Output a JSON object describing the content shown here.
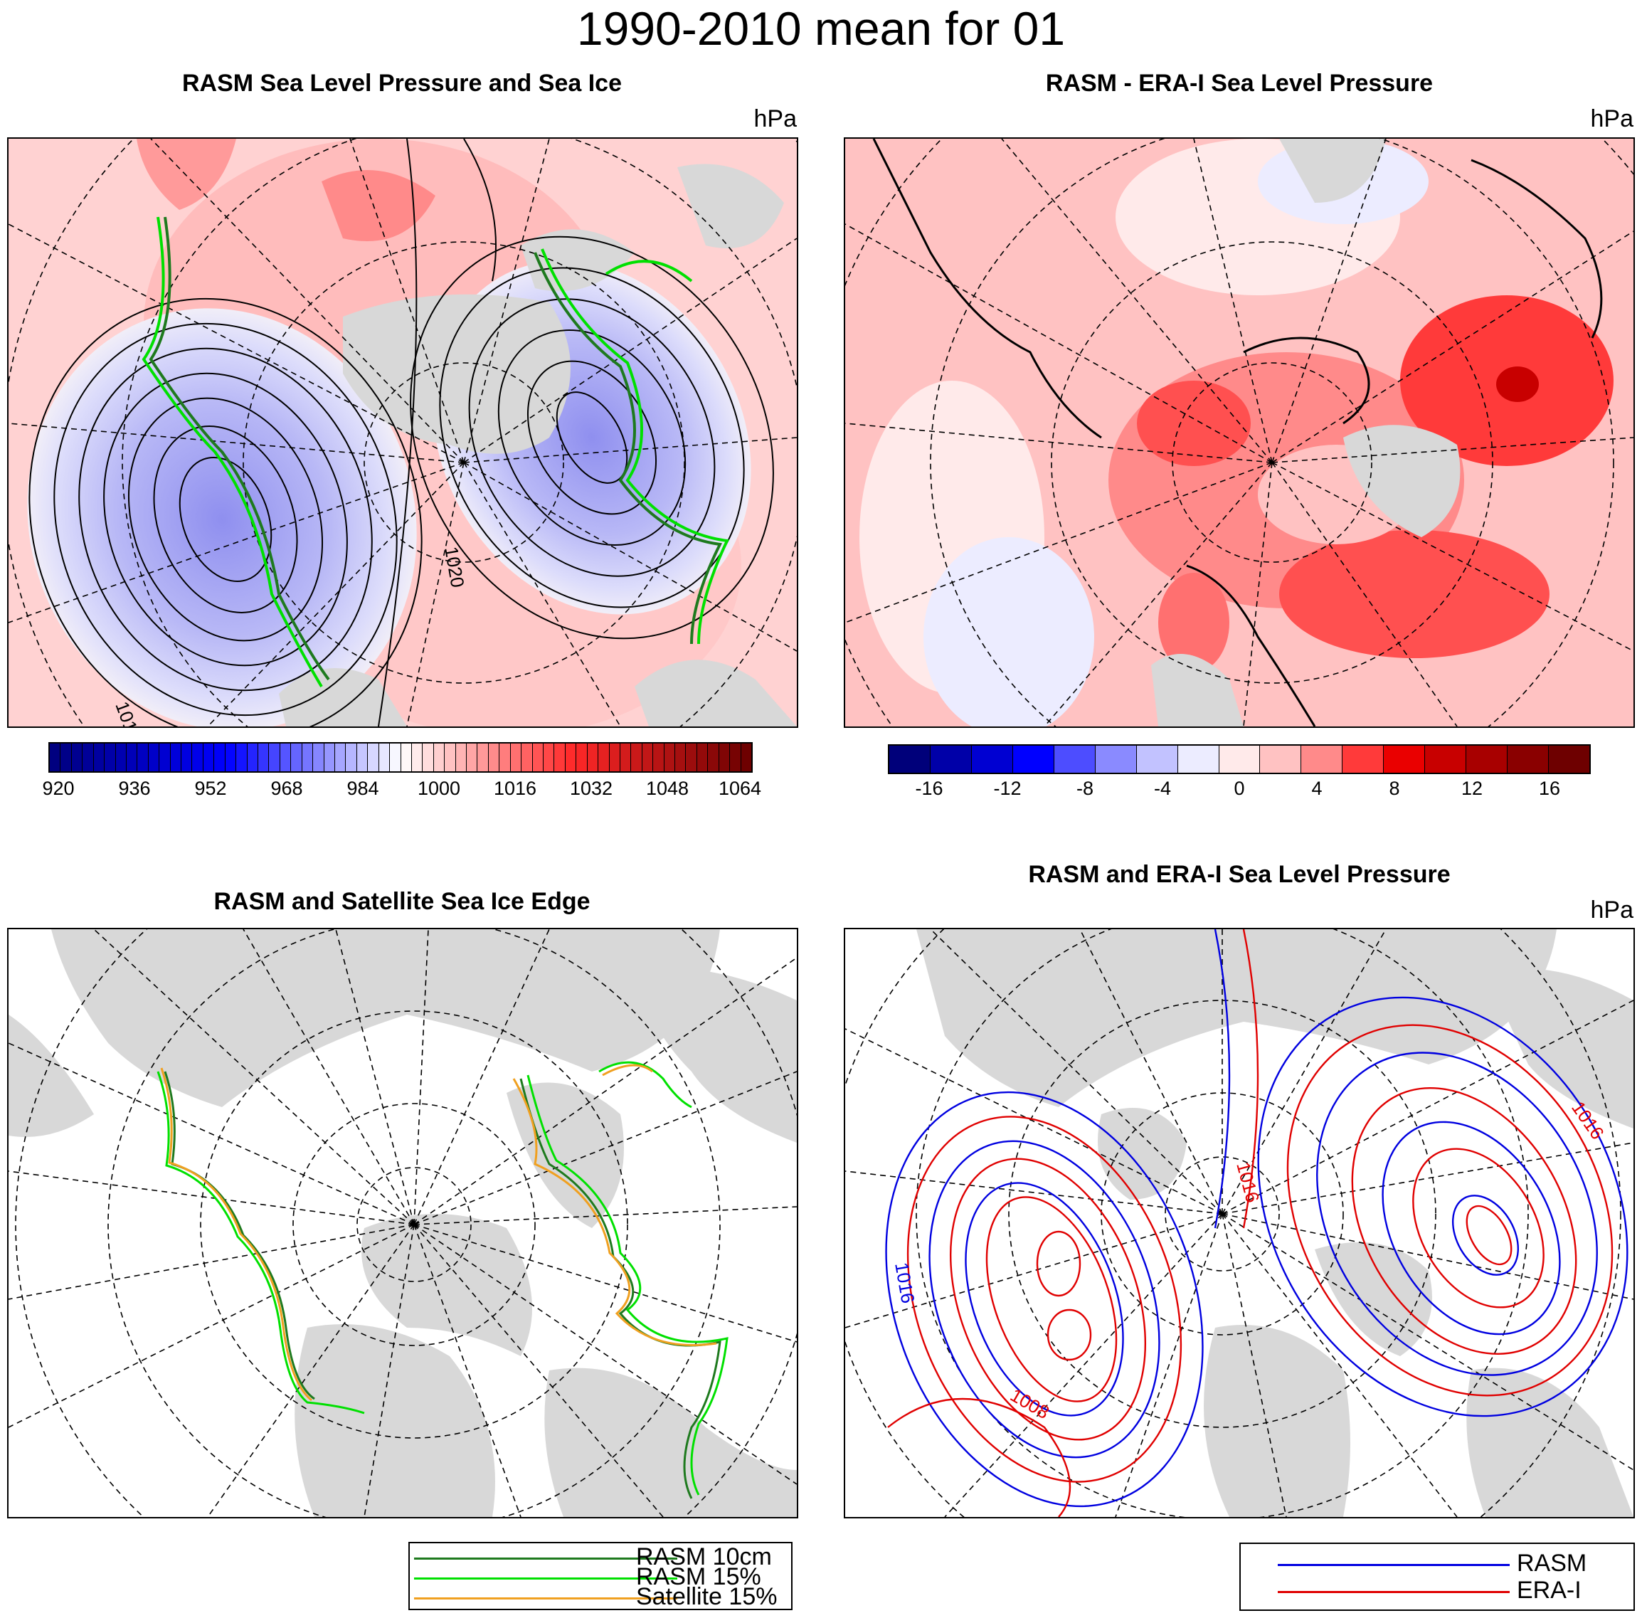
{
  "title": "1990-2010 mean for 01",
  "panels": {
    "top_left": {
      "title": "RASM Sea Level Pressure and Sea Ice",
      "units": "hPa",
      "contour_labels": [
        "1012",
        "1016",
        "1020"
      ]
    },
    "top_right": {
      "title": "RASM - ERA-I Sea Level Pressure",
      "units": "hPa"
    },
    "bottom_left": {
      "title": "RASM and Satellite Sea Ice Edge"
    },
    "bottom_right": {
      "title": "RASM and ERA-I Sea Level Pressure",
      "units": "hPa",
      "contour_labels": [
        "1016",
        "1008",
        "1016",
        "1016"
      ]
    }
  },
  "colorbar_slp": {
    "ticks": [
      "920",
      "936",
      "952",
      "968",
      "984",
      "1000",
      "1016",
      "1032",
      "1048",
      "1064"
    ]
  },
  "colorbar_diff": {
    "ticks": [
      "-16",
      "-12",
      "-8",
      "-4",
      "0",
      "4",
      "8",
      "12",
      "16"
    ],
    "colors": [
      "#00007a",
      "#0000a8",
      "#0000d2",
      "#0000ff",
      "#4d4dff",
      "#8a8aff",
      "#c2c2ff",
      "#ececff",
      "#ffeaea",
      "#ffc2c2",
      "#ff8a8a",
      "#ff3a3a",
      "#ea0000",
      "#c80000",
      "#a80000",
      "#8a0000",
      "#6e0000"
    ]
  },
  "legend_ice": {
    "items": [
      {
        "label": "RASM 10cm",
        "color": "#1e7a1e"
      },
      {
        "label": "RASM 15%",
        "color": "#00e000"
      },
      {
        "label": "Satellite 15%",
        "color": "#f0a020"
      }
    ]
  },
  "legend_slp": {
    "items": [
      {
        "label": "RASM",
        "color": "#0000e0"
      },
      {
        "label": "ERA-I",
        "color": "#e00000"
      }
    ]
  }
}
